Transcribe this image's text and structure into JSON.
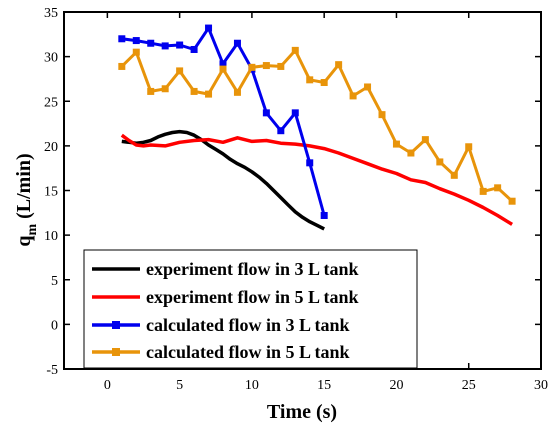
{
  "chart_data": {
    "type": "line",
    "xlabel": "Time (s)",
    "ylabel_main": "q",
    "ylabel_sub": "m",
    "ylabel_unit": " (L/min)",
    "xlim": [
      -3,
      30
    ],
    "ylim": [
      -5,
      35
    ],
    "xticks": [
      0,
      5,
      10,
      15,
      20,
      25,
      30
    ],
    "yticks": [
      -5,
      0,
      5,
      10,
      15,
      20,
      25,
      30,
      35
    ],
    "grid": false,
    "legend_position": "lower-left",
    "series": [
      {
        "name": "experiment flow in 3 L tank",
        "color": "#000000",
        "marker": "none",
        "x": [
          1,
          1.5,
          2,
          2.5,
          3,
          3.5,
          4,
          4.5,
          5,
          5.5,
          6,
          6.5,
          7,
          7.5,
          8,
          8.5,
          9,
          9.5,
          10,
          10.5,
          11,
          11.5,
          12,
          12.5,
          13,
          13.5,
          14,
          14.5,
          15
        ],
        "y": [
          20.5,
          20.4,
          20.3,
          20.4,
          20.6,
          21.0,
          21.3,
          21.5,
          21.6,
          21.5,
          21.2,
          20.7,
          20.1,
          19.6,
          19.1,
          18.5,
          18.0,
          17.6,
          17.1,
          16.5,
          15.8,
          15.0,
          14.2,
          13.4,
          12.6,
          12.0,
          11.5,
          11.1,
          10.7
        ]
      },
      {
        "name": "experiment flow in 5 L tank",
        "color": "#ff0000",
        "marker": "none",
        "x": [
          1,
          1.5,
          2,
          2.5,
          3,
          4,
          5,
          6,
          7,
          8,
          9,
          10,
          11,
          12,
          13,
          14,
          15,
          16,
          17,
          18,
          19,
          20,
          21,
          22,
          23,
          24,
          25,
          26,
          27,
          28
        ],
        "y": [
          21.2,
          20.6,
          20.1,
          20.0,
          20.1,
          20.0,
          20.4,
          20.6,
          20.7,
          20.4,
          20.9,
          20.5,
          20.6,
          20.3,
          20.2,
          20.0,
          19.7,
          19.2,
          18.6,
          18.0,
          17.4,
          16.9,
          16.2,
          15.9,
          15.2,
          14.6,
          13.9,
          13.1,
          12.2,
          11.2
        ]
      },
      {
        "name": "calculated flow in 3 L tank",
        "color": "#0000ee",
        "marker": "square",
        "x": [
          1,
          2,
          3,
          4,
          5,
          6,
          7,
          8,
          9,
          10,
          11,
          12,
          13,
          14,
          15
        ],
        "y": [
          32.0,
          31.8,
          31.5,
          31.2,
          31.3,
          30.8,
          33.2,
          29.2,
          31.5,
          28.6,
          23.7,
          21.7,
          23.7,
          18.1,
          12.2
        ]
      },
      {
        "name": "calculated flow in 5 L tank",
        "color": "#e8940a",
        "marker": "square",
        "x": [
          1,
          2,
          3,
          4,
          5,
          6,
          7,
          8,
          9,
          10,
          11,
          12,
          13,
          14,
          15,
          16,
          17,
          18,
          19,
          20,
          21,
          22,
          23,
          24,
          25,
          26,
          27,
          28
        ],
        "y": [
          28.9,
          30.5,
          26.1,
          26.4,
          28.4,
          26.1,
          25.8,
          28.6,
          26.0,
          28.8,
          29.0,
          28.9,
          30.7,
          27.4,
          27.1,
          29.1,
          25.6,
          26.6,
          23.5,
          20.2,
          19.2,
          20.7,
          18.2,
          16.7,
          19.9,
          14.9,
          15.3,
          13.8
        ]
      }
    ]
  }
}
